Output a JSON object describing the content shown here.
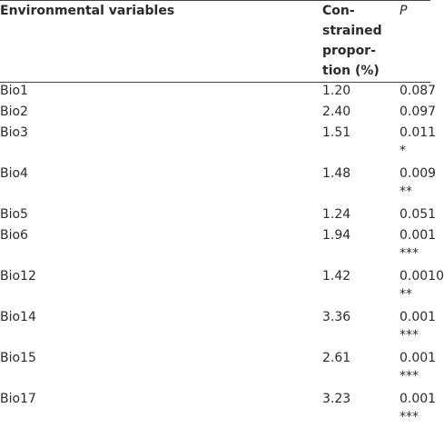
{
  "table": {
    "header": [
      "Environmental variables",
      [
        "Con-",
        "strained",
        "propor-",
        "tion (%)"
      ],
      "P"
    ],
    "rows": [
      {
        "variable": "Bio1",
        "proportion": "1.20",
        "p": "0.087"
      },
      {
        "variable": "Bio2",
        "proportion": "2.40",
        "p": "0.097"
      },
      {
        "variable": "Bio3",
        "proportion": "1.51",
        "p": "0.011",
        "sig": "*"
      },
      {
        "variable": "Bio4",
        "proportion": "1.48",
        "p": "0.009",
        "sig": "**"
      },
      {
        "variable": "Bio5",
        "proportion": "1.24",
        "p": "0.051"
      },
      {
        "variable": "Bio6",
        "proportion": "1.94",
        "p": "0.001",
        "sig": "***"
      },
      {
        "variable": "Bio12",
        "proportion": "1.42",
        "p": "0.0010",
        "sig": "**"
      },
      {
        "variable": "Bio14",
        "proportion": "3.36",
        "p": "0.001",
        "sig": "***"
      },
      {
        "variable": "Bio15",
        "proportion": "2.61",
        "p": "0.001",
        "sig": "***"
      },
      {
        "variable": "Bio17",
        "proportion": "3.23",
        "p": "0.001",
        "sig": "***"
      }
    ]
  }
}
